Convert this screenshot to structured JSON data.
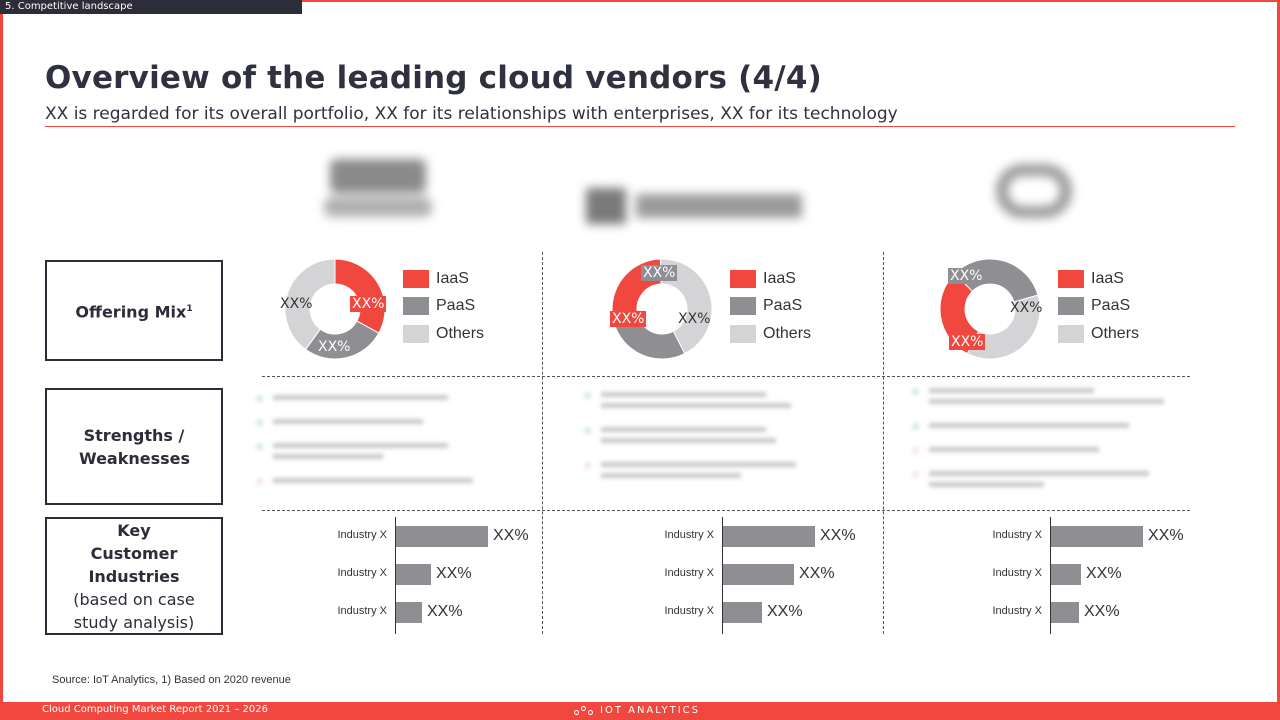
{
  "section_tag": "5. Competitive landscape",
  "title": "Overview of the leading cloud vendors (4/4)",
  "subtitle": "XX is regarded for its overall portfolio, XX for its relationships with enterprises, XX for its technology",
  "row_labels": {
    "offering_mix": "Offering Mix",
    "offering_mix_sup": "1",
    "strengths": "Strengths / Weaknesses",
    "key_customer_title": "Key Customer Industries",
    "key_customer_sub": "(based on case study analysis)"
  },
  "legend": [
    "IaaS",
    "PaaS",
    "Others"
  ],
  "colors": {
    "iaas": "#f0483e",
    "paas": "#8e8e93",
    "others": "#d4d4d6",
    "accent": "#f0483e",
    "dark": "#2d2d3a"
  },
  "vendors": [
    {
      "donut": {
        "iaas": 0.33,
        "paas": 0.27,
        "others": 0.4
      },
      "labels": {
        "iaas": "XX%",
        "paas": "XX%",
        "others": "XX%"
      },
      "industries": [
        {
          "label": "Industry X",
          "value": "XX%",
          "fraction": 1.0
        },
        {
          "label": "Industry X",
          "value": "XX%",
          "fraction": 0.38
        },
        {
          "label": "Industry X",
          "value": "XX%",
          "fraction": 0.28
        }
      ]
    },
    {
      "donut": {
        "iaas": 0.27,
        "paas": 0.3,
        "others": 0.43
      },
      "labels": {
        "iaas": "XX%",
        "paas": "XX%",
        "others": "XX%"
      },
      "industries": [
        {
          "label": "Industry X",
          "value": "XX%",
          "fraction": 1.0
        },
        {
          "label": "Industry X",
          "value": "XX%",
          "fraction": 0.77
        },
        {
          "label": "Industry X",
          "value": "XX%",
          "fraction": 0.42
        }
      ]
    },
    {
      "donut": {
        "iaas": 0.3,
        "paas": 0.33,
        "others": 0.37
      },
      "labels": {
        "iaas": "XX%",
        "paas": "XX%",
        "others": "XX%"
      },
      "industries": [
        {
          "label": "Industry X",
          "value": "XX%",
          "fraction": 1.0
        },
        {
          "label": "Industry X",
          "value": "XX%",
          "fraction": 0.33
        },
        {
          "label": "Industry X",
          "value": "XX%",
          "fraction": 0.3
        }
      ]
    }
  ],
  "source": "Source:  IoT Analytics, 1) Based on 2020 revenue",
  "footer_left": "Cloud Computing Market Report 2021 – 2026",
  "footer_logo": "IOT ANALYTICS"
}
